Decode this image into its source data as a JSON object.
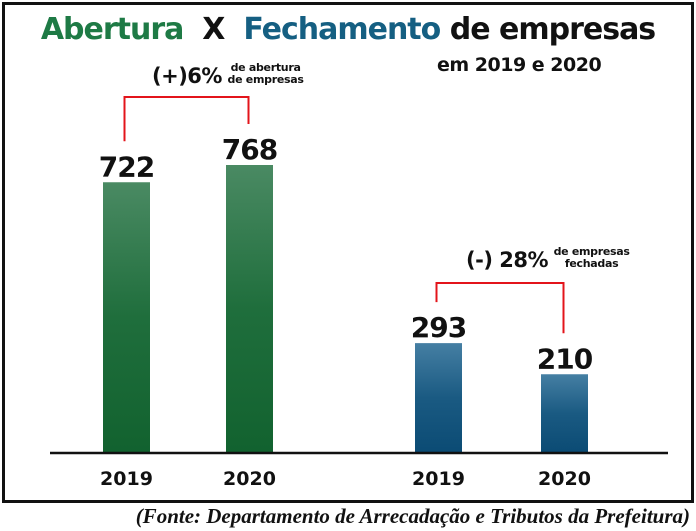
{
  "title": {
    "part1": "Abertura",
    "sep": "X",
    "part2": "Fechamento",
    "part3": "de empresas",
    "subtitle": "em 2019 e 2020"
  },
  "colors": {
    "abertura": "#1e7a45",
    "fechamento": "#155f82",
    "bracket": "#e3141b"
  },
  "chart_data": {
    "type": "bar",
    "groups": [
      {
        "name": "Abertura",
        "categories": [
          "2019",
          "2020"
        ],
        "values": [
          722,
          768
        ],
        "color": "#1e7a45",
        "annotation": {
          "value": "(+)6%",
          "text": [
            "de abertura",
            "de empresas"
          ]
        }
      },
      {
        "name": "Fechamento",
        "categories": [
          "2019",
          "2020"
        ],
        "values": [
          293,
          210
        ],
        "color": "#155f82",
        "annotation": {
          "value": "(-) 28%",
          "text": [
            "de empresas",
            "fechadas"
          ]
        }
      }
    ],
    "ylim": [
      0,
      768
    ],
    "grid": false,
    "legend": "none"
  },
  "source": "(Fonte: Departamento de Arrecadação e Tributos da Prefeitura)"
}
